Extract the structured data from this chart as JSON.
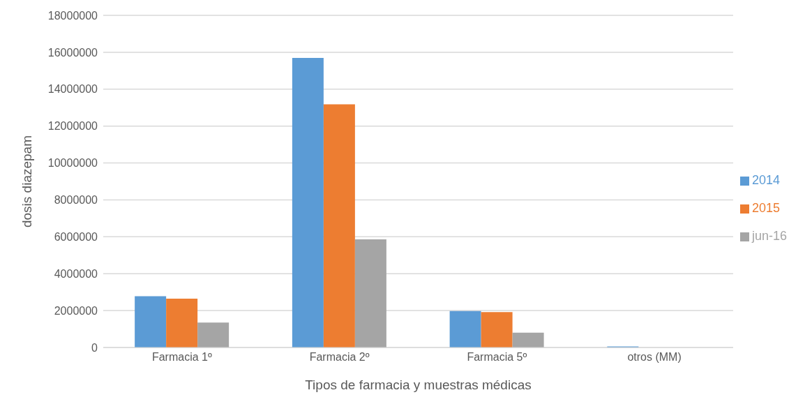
{
  "chart_data": {
    "type": "bar",
    "xlabel": "Tipos de farmacia y muestras médicas",
    "ylabel": "dosis diazepam",
    "categories": [
      "Farmacia 1º",
      "Farmacia 2º",
      "Farmacia 5º",
      "otros (MM)"
    ],
    "series": [
      {
        "name": "2014",
        "color": "#5b9bd5",
        "values": [
          2780000,
          15690000,
          1980000,
          60000
        ]
      },
      {
        "name": "2015",
        "color": "#ed7d31",
        "values": [
          2650000,
          13180000,
          1920000,
          null
        ]
      },
      {
        "name": "jun-16",
        "color": "#a5a5a5",
        "values": [
          1350000,
          5860000,
          800000,
          null
        ]
      }
    ],
    "ylim": [
      0,
      18000000
    ],
    "yticks": [
      0,
      2000000,
      4000000,
      6000000,
      8000000,
      10000000,
      12000000,
      14000000,
      16000000,
      18000000
    ],
    "grid": "y",
    "legend": "right"
  }
}
